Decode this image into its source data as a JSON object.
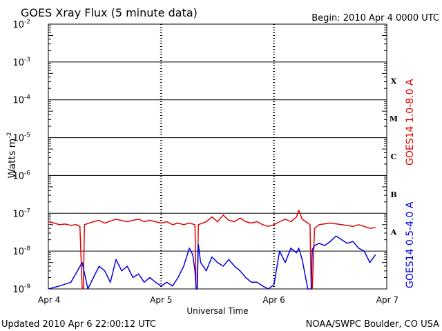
{
  "chart_data": {
    "type": "line",
    "title": "GOES Xray Flux (5 minute data)",
    "begin_label": "Begin:  2010 Apr 4 0000 UTC",
    "xlabel": "Universal Time",
    "ylabel_base": "Watts m",
    "ylabel_exp": "-2",
    "y_scale": "log",
    "ylim": [
      1e-09,
      0.01
    ],
    "y_ticks": [
      {
        "base": "10",
        "exp": "-2"
      },
      {
        "base": "10",
        "exp": "-3"
      },
      {
        "base": "10",
        "exp": "-4"
      },
      {
        "base": "10",
        "exp": "-5"
      },
      {
        "base": "10",
        "exp": "-6"
      },
      {
        "base": "10",
        "exp": "-7"
      },
      {
        "base": "10",
        "exp": "-8"
      },
      {
        "base": "10",
        "exp": "-9"
      }
    ],
    "x_ticks": [
      "Apr 4",
      "Apr 5",
      "Apr 6",
      "Apr 7"
    ],
    "xlim_days": [
      0,
      3
    ],
    "flare_classes": [
      {
        "label": "X",
        "level": 0.0001
      },
      {
        "label": "M",
        "level": 1e-05
      },
      {
        "label": "C",
        "level": 1e-06
      },
      {
        "label": "B",
        "level": 1e-07
      },
      {
        "label": "A",
        "level": 1e-08
      }
    ],
    "grid": "horizontal decades; dashed vertical day lines",
    "colors": {
      "long": "#e00000",
      "short": "#0000e0",
      "axis": "#000000"
    },
    "series": [
      {
        "name": "GOES14 1.0-8.0 A",
        "x_day": [
          0,
          0.05,
          0.1,
          0.15,
          0.2,
          0.25,
          0.28,
          0.3,
          0.31,
          0.32,
          0.4,
          0.45,
          0.5,
          0.6,
          0.7,
          0.75,
          0.8,
          0.85,
          0.9,
          0.95,
          1.0,
          1.05,
          1.1,
          1.15,
          1.2,
          1.25,
          1.3,
          1.31,
          1.32,
          1.33,
          1.4,
          1.45,
          1.5,
          1.55,
          1.6,
          1.65,
          1.7,
          1.75,
          1.8,
          1.85,
          1.9,
          1.95,
          2.0,
          2.05,
          2.1,
          2.15,
          2.2,
          2.22,
          2.25,
          2.3,
          2.32,
          2.33,
          2.34,
          2.36,
          2.4,
          2.5,
          2.6,
          2.7,
          2.75,
          2.8,
          2.85,
          2.9
        ],
        "y": [
          6e-08,
          5.5e-08,
          5e-08,
          5.2e-08,
          4.8e-08,
          5e-08,
          4.5e-08,
          1e-09,
          1e-09,
          5e-08,
          6e-08,
          6.5e-08,
          5.5e-08,
          7e-08,
          6e-08,
          6.5e-08,
          7e-08,
          6e-08,
          6.5e-08,
          6e-08,
          5.5e-08,
          6e-08,
          5e-08,
          5.5e-08,
          5e-08,
          5.5e-08,
          5e-08,
          1e-09,
          1e-09,
          5e-08,
          6e-08,
          8e-08,
          6e-08,
          9e-08,
          6.5e-08,
          6e-08,
          7.5e-08,
          6e-08,
          5.5e-08,
          6e-08,
          5e-08,
          4.5e-08,
          5e-08,
          6e-08,
          7e-08,
          6e-08,
          8e-08,
          1.2e-07,
          7e-08,
          5.5e-08,
          5e-08,
          1e-09,
          1e-09,
          4e-08,
          5e-08,
          5.5e-08,
          5e-08,
          4.5e-08,
          5e-08,
          4.5e-08,
          4e-08,
          4.2e-08
        ]
      },
      {
        "name": "GOES14 0.5-4.0 A",
        "x_day": [
          0,
          0.1,
          0.2,
          0.3,
          0.35,
          0.4,
          0.45,
          0.5,
          0.55,
          0.6,
          0.65,
          0.7,
          0.75,
          0.8,
          0.85,
          0.9,
          0.95,
          1.0,
          1.05,
          1.1,
          1.15,
          1.2,
          1.25,
          1.28,
          1.3,
          1.31,
          1.32,
          1.33,
          1.35,
          1.4,
          1.45,
          1.5,
          1.55,
          1.6,
          1.65,
          1.7,
          1.75,
          1.8,
          1.85,
          1.9,
          1.95,
          2.0,
          2.05,
          2.1,
          2.15,
          2.2,
          2.22,
          2.25,
          2.3,
          2.32,
          2.33,
          2.34,
          2.36,
          2.4,
          2.45,
          2.5,
          2.55,
          2.6,
          2.65,
          2.7,
          2.75,
          2.8,
          2.85,
          2.9
        ],
        "y": [
          1e-09,
          1.2e-09,
          1.5e-09,
          5e-09,
          1e-09,
          2e-09,
          4e-09,
          3e-09,
          1.5e-09,
          6e-09,
          3e-09,
          4e-09,
          2e-09,
          2.5e-09,
          1.5e-09,
          2e-09,
          1.5e-09,
          1.2e-09,
          1.5e-09,
          1.2e-09,
          2e-09,
          4e-09,
          1.2e-08,
          8e-09,
          3e-09,
          1e-09,
          1e-09,
          1.5e-08,
          5e-09,
          3e-09,
          7e-09,
          5e-09,
          4e-09,
          6e-09,
          4e-09,
          3e-09,
          2e-09,
          1.5e-09,
          1.5e-09,
          1.2e-09,
          1e-09,
          1.3e-09,
          1e-08,
          5e-09,
          1.2e-08,
          9e-09,
          1.2e-08,
          6e-09,
          1e-09,
          1e-09,
          1e-09,
          1.1e-08,
          1.4e-08,
          1.6e-08,
          1.4e-08,
          1.8e-08,
          2.5e-08,
          2e-08,
          1.6e-08,
          1.8e-08,
          1.2e-08,
          1e-08,
          5e-09,
          8e-09
        ]
      }
    ]
  },
  "footer": {
    "updated": "Updated 2010 Apr  6 22:00:12 UTC",
    "source": "NOAA/SWPC Boulder, CO USA"
  }
}
